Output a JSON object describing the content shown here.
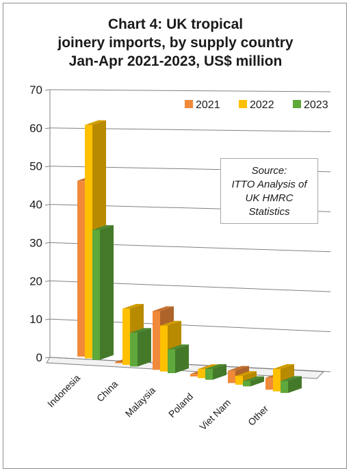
{
  "chart_data": {
    "type": "bar",
    "title_lines": [
      "Chart 4: UK tropical",
      "joinery imports, by supply country",
      "Jan-Apr 2021-2023, US$ million"
    ],
    "categories": [
      "Indonesia",
      "China",
      "Malaysia",
      "Poland",
      "Viet Nam",
      "Other"
    ],
    "series": [
      {
        "name": "2021",
        "color": "#f08a3a",
        "values": [
          46,
          0.3,
          16,
          0.7,
          3.5,
          3.5
        ]
      },
      {
        "name": "2022",
        "color": "#ffc000",
        "values": [
          61,
          15,
          12.5,
          2.5,
          2.5,
          6.5
        ]
      },
      {
        "name": "2023",
        "color": "#5fa83b",
        "values": [
          34,
          9,
          6.5,
          3,
          1.5,
          3.5
        ]
      }
    ],
    "ylim": [
      0,
      70
    ],
    "yticks": [
      0,
      10,
      20,
      30,
      40,
      50,
      60,
      70
    ],
    "legend_position": "top-right",
    "grid": true
  },
  "source_lines": [
    "Source:",
    "ITTO Analysis of",
    "UK HMRC",
    "Statistics"
  ]
}
